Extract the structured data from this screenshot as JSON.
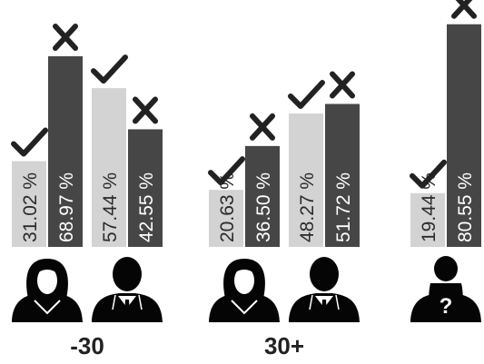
{
  "chart_data": {
    "type": "bar",
    "title": "",
    "xlabel": "",
    "ylabel": "",
    "ylim": [
      0,
      100
    ],
    "grid": false,
    "legend": "none",
    "colors": {
      "yes": "#d3d3d3",
      "no": "#464646",
      "text": "#222222"
    },
    "series": [
      {
        "name": "",
        "kind": "yes",
        "marker": "check-icon"
      },
      {
        "name": "",
        "kind": "no",
        "marker": "cross-icon"
      }
    ],
    "groups": [
      {
        "label": "-30",
        "members": [
          {
            "icon": "woman-icon",
            "yes": 31.02,
            "no": 68.97
          },
          {
            "icon": "man-icon",
            "yes": 57.44,
            "no": 42.55
          }
        ]
      },
      {
        "label": "30+",
        "members": [
          {
            "icon": "woman-icon",
            "yes": 20.63,
            "no": 36.5
          },
          {
            "icon": "man-icon",
            "yes": 48.27,
            "no": 51.72
          }
        ]
      },
      {
        "label": "",
        "members": [
          {
            "icon": "unknown-person-icon",
            "yes": 19.44,
            "no": 80.55
          }
        ]
      }
    ]
  }
}
